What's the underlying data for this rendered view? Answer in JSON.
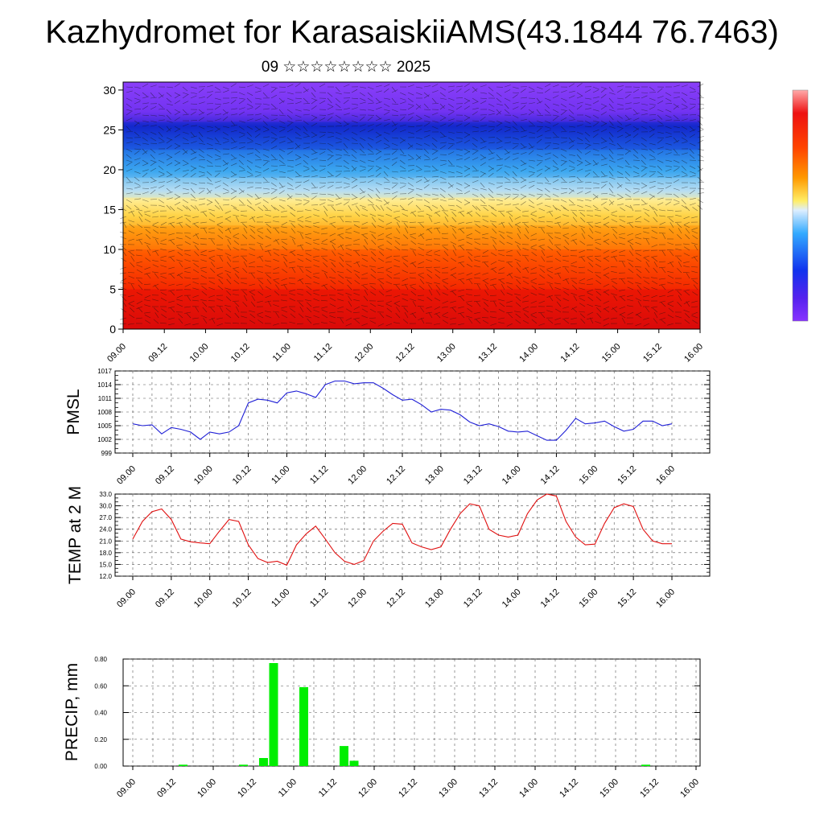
{
  "header": {
    "title": "Kazhydromet for KarasaiskiiAMS(43.1844 76.7463)",
    "subtitle": "09 ☆☆☆☆☆☆☆☆ 2025"
  },
  "colors": {
    "pmsl_line": "#1f1fd6",
    "temp_line": "#e01010",
    "precip_bar": "#00ee00",
    "colorbar": [
      "#ff9999",
      "#ee1111",
      "#ff4400",
      "#ff8800",
      "#ffcc33",
      "#ffff99",
      "#aaddff",
      "#33aaff",
      "#1155ee",
      "#2222cc",
      "#6622ee",
      "#8833ff"
    ]
  },
  "chart_data": [
    {
      "type": "heatmap",
      "description_of_axes": "",
      "x_tick_labels": [
        "09.00",
        "09.12",
        "10.00",
        "10.12",
        "11.00",
        "11.12",
        "12.00",
        "12.12",
        "13.00",
        "13.12",
        "14.00",
        "14.12",
        "15.00",
        "15.12",
        "16.00"
      ],
      "y_ticks": [
        0,
        5,
        10,
        15,
        20,
        25,
        30
      ],
      "ylim": [
        0,
        31
      ],
      "layers": [
        {
          "from": 0,
          "to": 5,
          "color": "#e01010"
        },
        {
          "from": 5,
          "to": 10,
          "color": "#ff4a00"
        },
        {
          "from": 10,
          "to": 13,
          "color": "#ff9a10"
        },
        {
          "from": 13,
          "to": 16.5,
          "color": "#ffe060"
        },
        {
          "from": 16.5,
          "to": 19,
          "color": "#a8d8f0"
        },
        {
          "from": 19,
          "to": 22.5,
          "color": "#30a0ee"
        },
        {
          "from": 22.5,
          "to": 26,
          "color": "#1a3fd8"
        },
        {
          "from": 26,
          "to": 31,
          "color": "#8a3cf6"
        }
      ],
      "overlay": "wind barbs"
    },
    {
      "type": "line",
      "ylabel": "PMSL",
      "y_ticks": [
        999,
        1002,
        1005,
        1008,
        1011,
        1014,
        1017
      ],
      "ylim": [
        999,
        1017
      ],
      "x_tick_labels": [
        "09.00",
        "09.12",
        "10.00",
        "10.12",
        "11.00",
        "11.12",
        "12.00",
        "12.12",
        "13.00",
        "13.12",
        "14.00",
        "14.12",
        "15.00",
        "15.12",
        "16.00"
      ],
      "x_hours_step": 3,
      "values": [
        1005.4,
        1005.0,
        1005.2,
        1003.2,
        1004.6,
        1004.2,
        1003.6,
        1002.0,
        1003.6,
        1003.2,
        1003.6,
        1005.0,
        1010.0,
        1010.8,
        1010.6,
        1010.0,
        1012.2,
        1012.6,
        1012.0,
        1011.2,
        1014.0,
        1014.8,
        1014.8,
        1014.2,
        1014.4,
        1014.4,
        1013.2,
        1011.8,
        1010.6,
        1010.8,
        1009.6,
        1008.0,
        1008.6,
        1008.4,
        1007.4,
        1005.8,
        1005.0,
        1005.4,
        1004.8,
        1003.8,
        1003.6,
        1003.8,
        1002.8,
        1001.8,
        1001.8,
        1004.0,
        1006.6,
        1005.4,
        1005.6,
        1006.0,
        1004.8,
        1003.8,
        1004.2,
        1006.0,
        1006.0,
        1005.0,
        1005.4
      ]
    },
    {
      "type": "line",
      "ylabel": "TEMP at 2 M",
      "y_ticks": [
        12.0,
        15.0,
        18.0,
        21.0,
        24.0,
        27.0,
        30.0,
        33.0
      ],
      "y_tick_labels": [
        "12.0",
        "15.0",
        "18.0",
        "21.0",
        "24.0",
        "27.0",
        "30.0",
        "33.0"
      ],
      "ylim": [
        12,
        33
      ],
      "x_tick_labels": [
        "09.00",
        "09.12",
        "10.00",
        "10.12",
        "11.00",
        "11.12",
        "12.00",
        "12.12",
        "13.00",
        "13.12",
        "14.00",
        "14.12",
        "15.00",
        "15.12",
        "16.00"
      ],
      "x_hours_step": 3,
      "values": [
        21.5,
        26.0,
        28.5,
        29.2,
        26.5,
        21.5,
        20.8,
        20.5,
        20.3,
        23.5,
        26.5,
        26.0,
        20.0,
        16.5,
        15.5,
        15.8,
        14.8,
        20.0,
        22.8,
        24.8,
        21.5,
        18.0,
        15.8,
        15.0,
        16.0,
        21.0,
        23.5,
        25.5,
        25.3,
        20.5,
        19.5,
        18.8,
        19.5,
        24.0,
        28.0,
        30.5,
        30.0,
        24.0,
        22.5,
        22.0,
        22.5,
        28.0,
        31.5,
        33.0,
        32.5,
        26.0,
        22.0,
        20.0,
        20.2,
        25.5,
        29.5,
        30.5,
        29.8,
        24.0,
        21.0,
        20.3,
        20.3
      ]
    },
    {
      "type": "bar",
      "ylabel": "PRECIP, mm",
      "y_ticks": [
        0.0,
        0.2,
        0.4,
        0.6,
        0.8
      ],
      "y_tick_labels": [
        "0.00",
        "0.20",
        "0.40",
        "0.60",
        "0.80"
      ],
      "ylim": [
        0,
        0.8
      ],
      "x_tick_labels": [
        "09.00",
        "09.12",
        "10.00",
        "10.12",
        "11.00",
        "11.12",
        "12.00",
        "12.12",
        "13.00",
        "13.12",
        "14.00",
        "14.12",
        "15.00",
        "15.12",
        "16.00"
      ],
      "bars": [
        {
          "hour": 15,
          "value": 0.01
        },
        {
          "hour": 33,
          "value": 0.01
        },
        {
          "hour": 39,
          "value": 0.06
        },
        {
          "hour": 42,
          "value": 0.77
        },
        {
          "hour": 51,
          "value": 0.59
        },
        {
          "hour": 63,
          "value": 0.15
        },
        {
          "hour": 66,
          "value": 0.04
        },
        {
          "hour": 153,
          "value": 0.01
        }
      ]
    }
  ]
}
